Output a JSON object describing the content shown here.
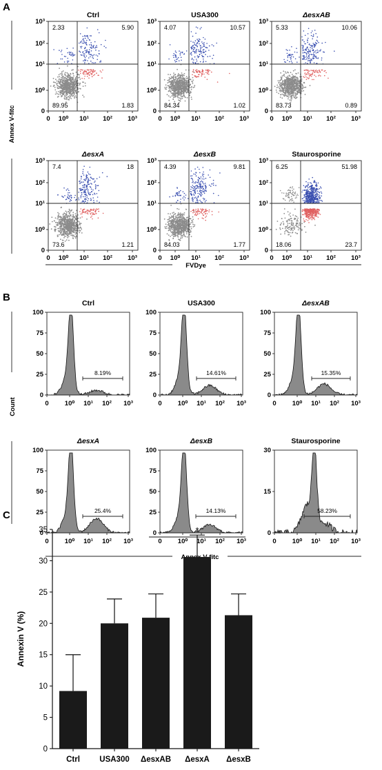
{
  "panels": {
    "a": "A",
    "b": "B",
    "c": "C"
  },
  "panel_a": {
    "y_label": "Annex V-fitc",
    "x_label": "FVDye",
    "x_ticks": [
      "0",
      "10⁰",
      "10¹",
      "10²",
      "10³"
    ],
    "y_ticks": [
      "0",
      "10⁰",
      "10¹",
      "10²",
      "10³"
    ],
    "plots": [
      {
        "title": "Ctrl",
        "italic": false,
        "ul": "2.33",
        "ur": "5.90",
        "ll": "89.95",
        "lr": "1.83"
      },
      {
        "title": "USA300",
        "italic": false,
        "ul": "4.07",
        "ur": "10.57",
        "ll": "84.34",
        "lr": "1.02"
      },
      {
        "title": "ΔesxAB",
        "italic": true,
        "ul": "5.33",
        "ur": "10.06",
        "ll": "83.73",
        "lr": "0.89"
      },
      {
        "title": "ΔesxA",
        "italic": true,
        "ul": "7.4",
        "ur": "18",
        "ll": "73.6",
        "lr": "1.21"
      },
      {
        "title": "ΔesxB",
        "italic": true,
        "ul": "4.39",
        "ur": "9.81",
        "ll": "84.03",
        "lr": "1.77"
      },
      {
        "title": "Staurosporine",
        "italic": false,
        "ul": "6.25",
        "ur": "51.98",
        "ll": "18.06",
        "lr": "23.7"
      }
    ],
    "colors": {
      "live": "#8c8c8c",
      "early": "#e06060",
      "late": "#3a4fb0"
    }
  },
  "panel_b": {
    "y_label": "Count",
    "x_label": "Annex V-fitc",
    "x_ticks": [
      "0",
      "10⁰",
      "10¹",
      "10²",
      "10³"
    ],
    "plots": [
      {
        "title": "Ctrl",
        "italic": false,
        "y_ticks": [
          "0",
          "25",
          "50",
          "75",
          "100"
        ],
        "gate": "8.19%"
      },
      {
        "title": "USA300",
        "italic": false,
        "y_ticks": [
          "0",
          "25",
          "50",
          "75",
          "100"
        ],
        "gate": "14.61%"
      },
      {
        "title": "ΔesxAB",
        "italic": true,
        "y_ticks": [
          "0",
          "25",
          "50",
          "75",
          "100"
        ],
        "gate": "15.35%"
      },
      {
        "title": "ΔesxA",
        "italic": true,
        "y_ticks": [
          "0",
          "25",
          "50",
          "75",
          "100"
        ],
        "gate": "25.4%"
      },
      {
        "title": "ΔesxB",
        "italic": true,
        "y_ticks": [
          "0",
          "25",
          "50",
          "75",
          "100"
        ],
        "gate": "14.13%"
      },
      {
        "title": "Staurosporine",
        "italic": false,
        "y_ticks": [
          "0",
          "15",
          "30"
        ],
        "gate": "58.23%"
      }
    ]
  },
  "chart_data": {
    "type": "bar",
    "categories": [
      "Ctrl",
      "USA300",
      "ΔesxAB",
      "ΔesxA",
      "ΔesxB"
    ],
    "values": [
      9.2,
      20.0,
      20.9,
      30.6,
      21.3
    ],
    "errors": [
      5.8,
      3.9,
      3.8,
      3.5,
      3.4
    ],
    "ylabel": "Annexin V (%)",
    "ylim": [
      0,
      35
    ],
    "y_ticks": [
      "0",
      "5",
      "10",
      "15",
      "20",
      "25",
      "30",
      "35"
    ],
    "significance": {
      "from": "ΔesxAB",
      "to": "ΔesxB",
      "label": "*"
    },
    "bar_color": "#1a1a1a"
  }
}
